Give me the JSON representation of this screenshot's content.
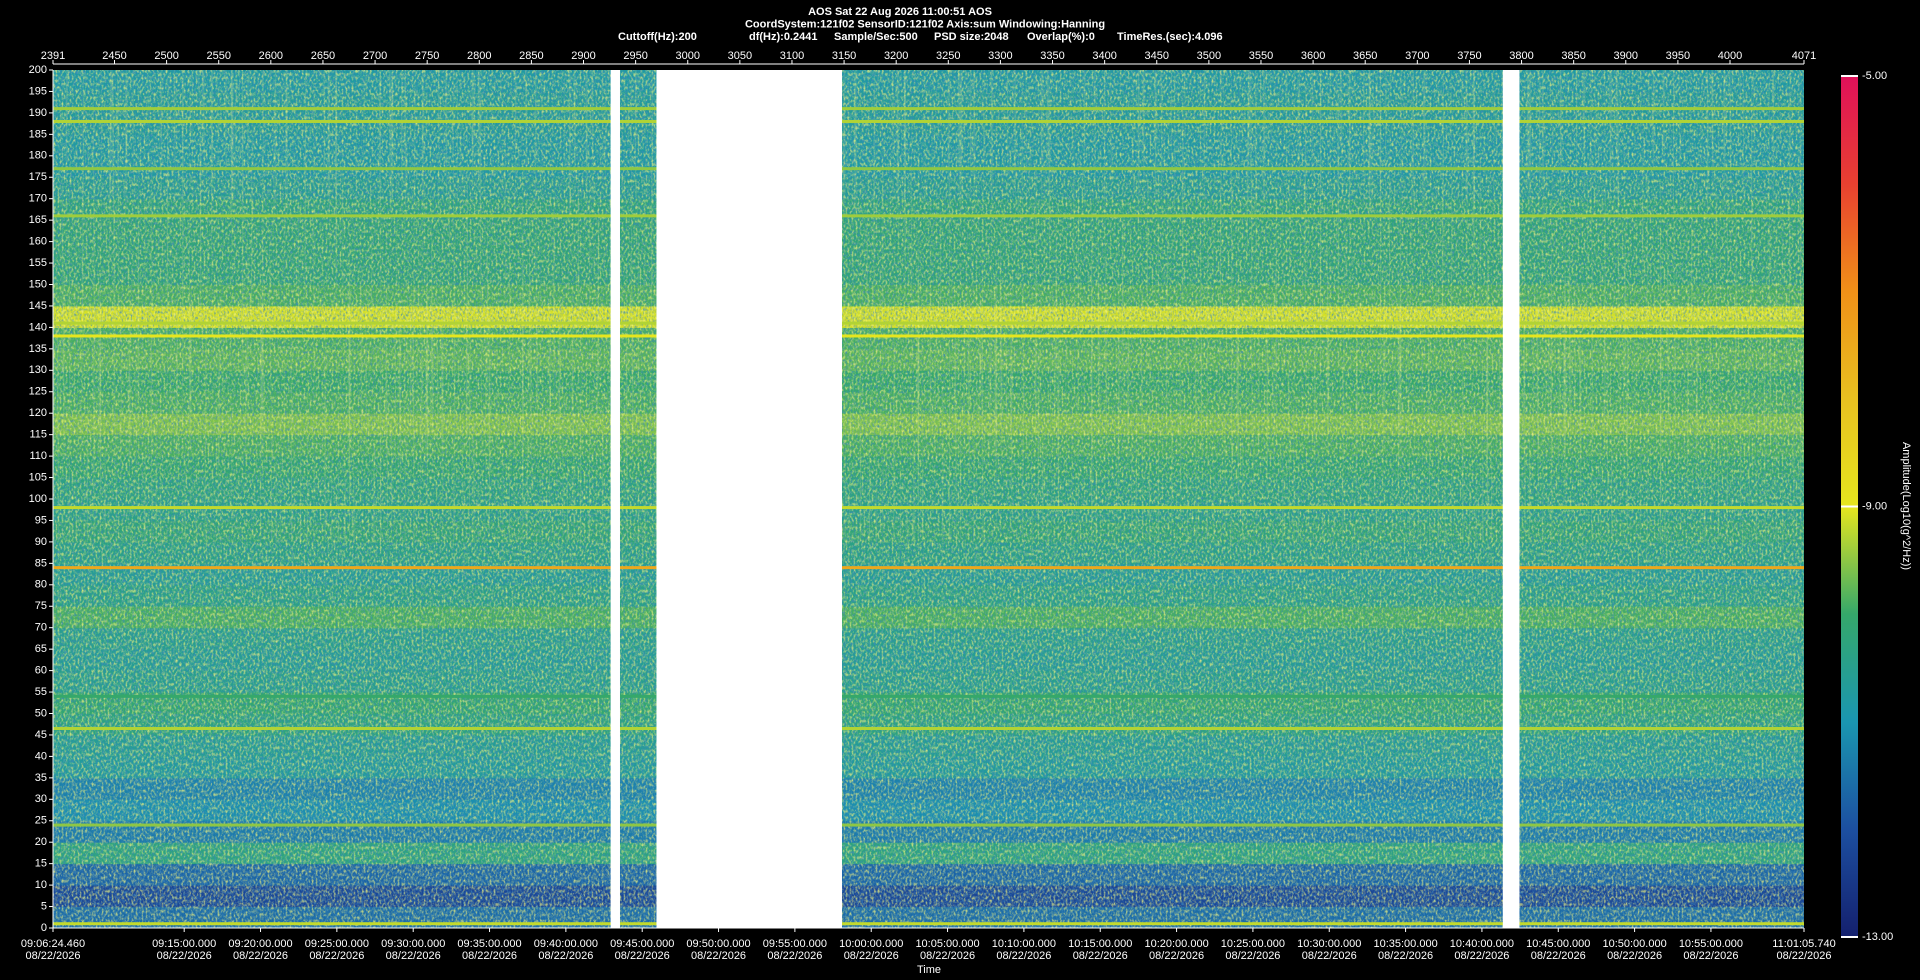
{
  "chart_data": {
    "type": "spectrogram",
    "title": "AOS  Sat 22 Aug 2026 11:00:51  AOS",
    "subtitle": "CoordSystem:121f02   SensorID:121f02   Axis:sum   Windowing:Hanning",
    "parameters": [
      "Cuttoff(Hz):200",
      "df(Hz):0.2441",
      "Sample/Sec:500",
      "PSD size:2048",
      "Overlap(%):0",
      "TimeRes.(sec):4.096"
    ],
    "xlabel": "Time",
    "clabel": "Amplitude(Log10(g^2/Hz))",
    "ylim": [
      0,
      200
    ],
    "yticks": [
      0,
      5,
      10,
      15,
      20,
      25,
      30,
      35,
      40,
      45,
      50,
      55,
      60,
      65,
      70,
      75,
      80,
      85,
      90,
      95,
      100,
      105,
      110,
      115,
      120,
      125,
      130,
      135,
      140,
      145,
      150,
      155,
      160,
      165,
      170,
      175,
      180,
      185,
      190,
      195,
      200
    ],
    "x2lim": [
      2391,
      4071
    ],
    "x2ticks": [
      2391,
      2450,
      2500,
      2550,
      2600,
      2650,
      2700,
      2750,
      2800,
      2850,
      2900,
      2950,
      3000,
      3050,
      3100,
      3150,
      3200,
      3250,
      3300,
      3350,
      3400,
      3450,
      3500,
      3550,
      3600,
      3650,
      3700,
      3750,
      3800,
      3850,
      3900,
      3950,
      4000,
      4071
    ],
    "xlim": [
      32784.46,
      39665.74
    ],
    "xticks": [
      {
        "value": 32784.46,
        "label": "09:06:24.460"
      },
      {
        "value": 33300,
        "label": "09:15:00.000"
      },
      {
        "value": 33600,
        "label": "09:20:00.000"
      },
      {
        "value": 33900,
        "label": "09:25:00.000"
      },
      {
        "value": 34200,
        "label": "09:30:00.000"
      },
      {
        "value": 34500,
        "label": "09:35:00.000"
      },
      {
        "value": 34800,
        "label": "09:40:00.000"
      },
      {
        "value": 35100,
        "label": "09:45:00.000"
      },
      {
        "value": 35400,
        "label": "09:50:00.000"
      },
      {
        "value": 35700,
        "label": "09:55:00.000"
      },
      {
        "value": 36000,
        "label": "10:00:00.000"
      },
      {
        "value": 36300,
        "label": "10:05:00.000"
      },
      {
        "value": 36600,
        "label": "10:10:00.000"
      },
      {
        "value": 36900,
        "label": "10:15:00.000"
      },
      {
        "value": 37200,
        "label": "10:20:00.000"
      },
      {
        "value": 37500,
        "label": "10:25:00.000"
      },
      {
        "value": 37800,
        "label": "10:30:00.000"
      },
      {
        "value": 38100,
        "label": "10:35:00.000"
      },
      {
        "value": 38400,
        "label": "10:40:00.000"
      },
      {
        "value": 38700,
        "label": "10:45:00.000"
      },
      {
        "value": 39000,
        "label": "10:50:00.000"
      },
      {
        "value": 39300,
        "label": "10:55:00.000"
      },
      {
        "value": 39665.74,
        "label": "11:01:05.740"
      }
    ],
    "date": "08/22/2026",
    "freq_bins": [
      0,
      5,
      10,
      15,
      20,
      25,
      30,
      35,
      40,
      45,
      50,
      55,
      60,
      65,
      70,
      75,
      80,
      85,
      90,
      95,
      100,
      105,
      110,
      115,
      120,
      125,
      130,
      135,
      140,
      145,
      150,
      155,
      160,
      165,
      170,
      175,
      180,
      185,
      190,
      195,
      200
    ],
    "levels": [
      -11.6,
      -12.2,
      -11.7,
      -10.3,
      -11.4,
      -11.1,
      -11.3,
      -10.7,
      -10.6,
      -10.3,
      -10.1,
      -10.5,
      -10.6,
      -10.5,
      -9.9,
      -10.4,
      -10.6,
      -10.4,
      -10.2,
      -10.4,
      -10.3,
      -10.1,
      -9.9,
      -9.6,
      -9.9,
      -10.0,
      -9.8,
      -9.9,
      -9.1,
      -9.9,
      -10.2,
      -10.2,
      -10.2,
      -10.3,
      -10.6,
      -10.8,
      -10.8,
      -10.7,
      -10.7,
      -10.8
    ],
    "lines": {
      "freqs": [
        1,
        24,
        46.5,
        54,
        84,
        98,
        138,
        141,
        166,
        177,
        188,
        191
      ],
      "levels": [
        -9.2,
        -9.5,
        -9.3,
        -10,
        -7.5,
        -9.2,
        -9.0,
        -9.3,
        -9.4,
        -9.5,
        -9.3,
        -9.4
      ]
    },
    "gaps": [
      [
        2926,
        2935
      ],
      [
        2970,
        3148
      ],
      [
        3782,
        3798
      ]
    ],
    "clim": [
      -13,
      -5
    ],
    "cticks": [
      {
        "value": -13,
        "label": "-13.00"
      },
      {
        "value": -9,
        "label": "-9.00"
      },
      {
        "value": -5,
        "label": "-5.00"
      }
    ],
    "colormap": {
      "values": [
        -13,
        -12,
        -11,
        -10,
        -9,
        -8,
        -7,
        -6,
        -5
      ],
      "colors": [
        "#14206e",
        "#1c4fa0",
        "#1a96b0",
        "#35a86a",
        "#e6e61e",
        "#e8c020",
        "#f09018",
        "#e84030",
        "#e0105a"
      ]
    }
  }
}
